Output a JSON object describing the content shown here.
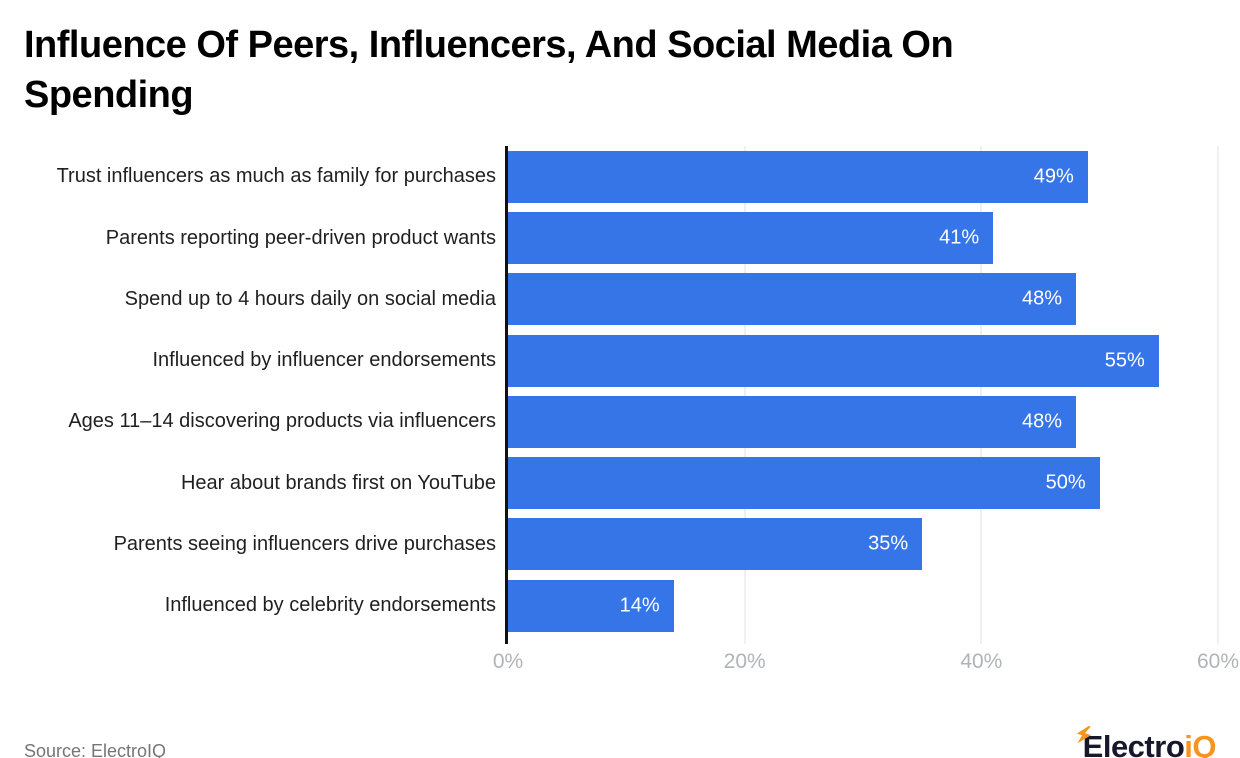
{
  "title": "Influence Of Peers, Influencers, And Social Media On Spending",
  "source": "Source: ElectroIQ",
  "logo": {
    "prefix": "Electro",
    "suffix": "iQ"
  },
  "colors": {
    "bar": "#3575e8",
    "value_label": "#ffffff",
    "axis_line": "#111111",
    "gridline": "#e0e0e0",
    "tick_label": "#b0b4b8",
    "category_label": "#1f1f1f",
    "source_text": "#757575",
    "logo_dark": "#17182b",
    "logo_orange": "#f7941d"
  },
  "chart_data": {
    "type": "bar",
    "orientation": "horizontal",
    "title": "Influence Of Peers, Influencers, And Social Media On Spending",
    "categories": [
      "Trust influencers as much as family for purchases",
      "Parents reporting peer-driven product wants",
      "Spend up to 4 hours daily on social media",
      "Influenced by influencer endorsements",
      "Ages 11–14 discovering products via influencers",
      "Hear about brands first on YouTube",
      "Parents seeing influencers drive purchases",
      "Influenced by celebrity endorsements"
    ],
    "values": [
      49,
      41,
      48,
      55,
      48,
      50,
      35,
      14
    ],
    "value_suffix": "%",
    "xlim": [
      0,
      60
    ],
    "x_ticks": [
      {
        "value": 0,
        "label": "0%"
      },
      {
        "value": 20,
        "label": "20%"
      },
      {
        "value": 40,
        "label": "40%"
      },
      {
        "value": 60,
        "label": "60%"
      }
    ],
    "grid_values": [
      20,
      40,
      60
    ],
    "grid": "vertical-light",
    "legend": "none",
    "xlabel": "",
    "ylabel": ""
  }
}
